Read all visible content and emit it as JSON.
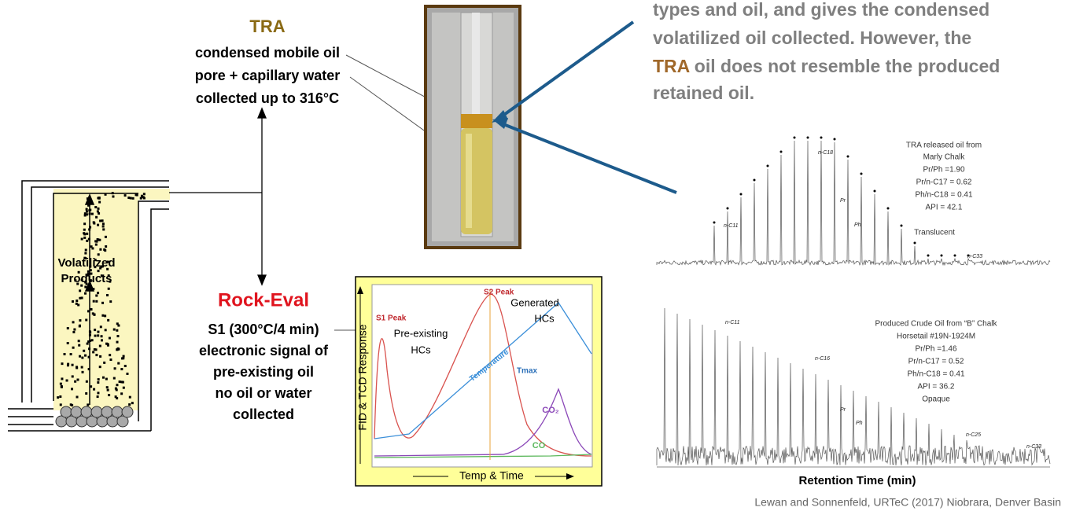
{
  "note": {
    "line1": "types and oil, and gives the condensed",
    "line2": "volatilized oil collected.  However, the",
    "highlight": "TRA",
    "line3": " oil does not resemble the produced",
    "line4": "retained oil."
  },
  "tra": {
    "title": "TRA",
    "lines": [
      "condensed mobile oil",
      "pore + capillary water",
      "collected up to 316°C"
    ]
  },
  "rock_eval": {
    "title": "Rock-Eval",
    "lines": [
      "S1 (300°C/4 min)",
      "electronic signal of",
      "pre-existing oil",
      "no oil or water",
      "collected"
    ]
  },
  "apparatus": {
    "label": [
      "Volatilized",
      "Products"
    ]
  },
  "pyrogram": {
    "y_label": "FID & TCD Response",
    "x_label": "Temp & Time",
    "s1_peak": "S1 Peak",
    "s2_peak": "S2 Peak",
    "pre_existing": [
      "Pre-existing",
      "HCs"
    ],
    "generated": [
      "Generated",
      "HCs"
    ],
    "temperature": "Temperature",
    "tmax": "Tmax",
    "co2": "CO₂",
    "co": "CO"
  },
  "chromatograms": {
    "top": {
      "lines": [
        "TRA released oil from",
        "Marly Chalk",
        "Pr/Ph =1.90",
        "Pr/n-C17 = 0.62",
        "Ph/n-C18 = 0.41",
        "API = 42.1"
      ],
      "appearance": "Translucent",
      "peaks": [
        "n-C11",
        "n-C18",
        "Pr",
        "Ph",
        "n-C33"
      ]
    },
    "bottom": {
      "lines": [
        "Produced Crude Oil from “B” Chalk",
        "Horsetail #19N-1924M",
        "Pr/Ph =1.46",
        "Pr/n-C17 = 0.52",
        "Ph/n-C18 = 0.41",
        "API = 36.2",
        "Opaque"
      ],
      "peaks": [
        "n-C11",
        "n-C16",
        "Pr",
        "Ph",
        "n-C25",
        "n-C33"
      ]
    },
    "x_label": "Retention Time (min)"
  },
  "citation": "Lewan and Sonnenfeld, URTeC (2017) Niobrara, Denver Basin"
}
